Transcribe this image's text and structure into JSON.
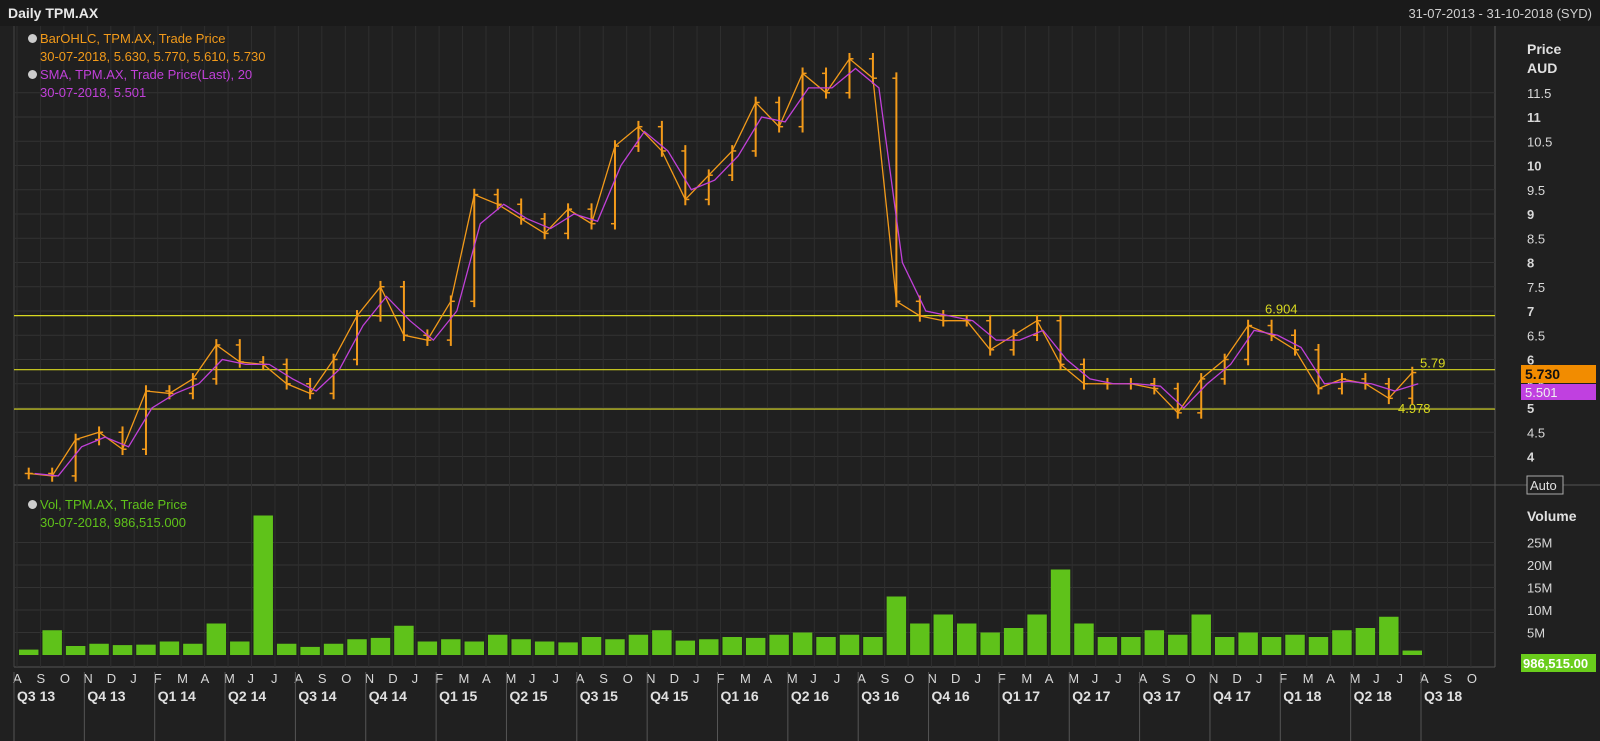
{
  "window": {
    "title": "Daily TPM.AX",
    "date_range": "31-07-2013 - 31-10-2018 (SYD)"
  },
  "price_panel": {
    "legend_bar": {
      "name": "BarOHLC, TPM.AX, Trade Price",
      "detail": "30-07-2018, 5.630, 5.770, 5.610, 5.730"
    },
    "legend_sma": {
      "name": "SMA, TPM.AX, Trade Price(Last),  20",
      "detail": "30-07-2018, 5.501"
    },
    "axis_title_1": "Price",
    "axis_title_2": "AUD",
    "auto_button": "Auto",
    "last_price_badge": "5.730",
    "sma_badge": "5.501",
    "hlines": [
      {
        "label": "6.904",
        "value": 6.904
      },
      {
        "label": "5.79",
        "value": 5.79
      },
      {
        "label": "4.978",
        "value": 4.978
      }
    ]
  },
  "volume_panel": {
    "legend": {
      "name": "Vol, TPM.AX, Trade Price",
      "detail": "30-07-2018, 986,515.000"
    },
    "axis_title": "Volume",
    "badge": "986,515.00",
    "badge_hidden": "Auto"
  },
  "colors": {
    "bars": "#f29a1a",
    "sma": "#c040d8",
    "volume": "#5fc21a",
    "hline": "#d8d820",
    "badge_price": "#f28c00",
    "badge_sma": "#c040e0",
    "badge_vol": "#6acd1c"
  },
  "chart_data": [
    {
      "type": "line",
      "title": "",
      "ylabel": "Price AUD",
      "ylim": [
        3.4,
        12.4
      ],
      "y_ticks": [
        "4",
        "4.5",
        "5",
        "5.5",
        "6",
        "6.5",
        "7",
        "7.5",
        "8",
        "8.5",
        "9",
        "9.5",
        "10",
        "10.5",
        "11",
        "11.5"
      ],
      "x_month_labels": [
        "A",
        "S",
        "O",
        "N",
        "D",
        "J",
        "F",
        "M",
        "A",
        "M",
        "J",
        "J",
        "A",
        "S",
        "O",
        "N",
        "D",
        "J",
        "F",
        "M",
        "A",
        "M",
        "J",
        "J",
        "A",
        "S",
        "O",
        "N",
        "D",
        "J",
        "F",
        "M",
        "A",
        "M",
        "J",
        "J",
        "A",
        "S",
        "O",
        "N",
        "D",
        "J",
        "F",
        "M",
        "A",
        "M",
        "J",
        "J",
        "A",
        "S",
        "O",
        "N",
        "D",
        "J",
        "F",
        "M",
        "A",
        "M",
        "J",
        "J",
        "A",
        "S",
        "O"
      ],
      "x_quarter_labels": [
        "Q3 13",
        "Q4 13",
        "Q1 14",
        "Q2 14",
        "Q3 14",
        "Q4 14",
        "Q1 15",
        "Q2 15",
        "Q3 15",
        "Q4 15",
        "Q1 16",
        "Q2 16",
        "Q3 16",
        "Q4 16",
        "Q1 17",
        "Q2 17",
        "Q3 17",
        "Q4 17",
        "Q1 18",
        "Q2 18",
        "Q3 18"
      ],
      "series": [
        {
          "name": "BarOHLC, TPM.AX, Trade Price",
          "x": [
            "2013-08",
            "2013-09",
            "2013-10",
            "2013-11",
            "2013-12",
            "2014-01",
            "2014-02",
            "2014-03",
            "2014-04",
            "2014-05",
            "2014-06",
            "2014-07",
            "2014-08",
            "2014-09",
            "2014-10",
            "2014-11",
            "2014-12",
            "2015-01",
            "2015-02",
            "2015-03",
            "2015-04",
            "2015-05",
            "2015-06",
            "2015-07",
            "2015-08",
            "2015-09",
            "2015-10",
            "2015-11",
            "2015-12",
            "2016-01",
            "2016-02",
            "2016-03",
            "2016-04",
            "2016-05",
            "2016-06",
            "2016-07",
            "2016-08",
            "2016-09",
            "2016-10",
            "2016-11",
            "2016-12",
            "2017-01",
            "2017-02",
            "2017-03",
            "2017-04",
            "2017-05",
            "2017-06",
            "2017-07",
            "2017-08",
            "2017-09",
            "2017-10",
            "2017-11",
            "2017-12",
            "2018-01",
            "2018-02",
            "2018-03",
            "2018-04",
            "2018-05",
            "2018-06",
            "2018-07"
          ],
          "values": [
            3.65,
            3.6,
            4.35,
            4.5,
            4.15,
            5.35,
            5.3,
            5.6,
            6.3,
            5.95,
            5.9,
            5.5,
            5.3,
            6.0,
            6.9,
            7.5,
            6.5,
            6.4,
            7.2,
            9.4,
            9.2,
            8.9,
            8.6,
            9.1,
            8.8,
            10.4,
            10.8,
            10.3,
            9.3,
            9.8,
            10.3,
            11.3,
            10.8,
            11.9,
            11.5,
            12.2,
            11.8,
            7.2,
            6.9,
            6.8,
            6.8,
            6.2,
            6.5,
            6.8,
            5.9,
            5.5,
            5.5,
            5.5,
            5.4,
            4.9,
            5.6,
            6.0,
            6.7,
            6.5,
            6.2,
            5.4,
            5.6,
            5.5,
            5.2,
            5.73
          ]
        },
        {
          "name": "SMA, TPM.AX, Trade Price(Last),  20",
          "x": [
            "2013-08",
            "2013-09",
            "2013-10",
            "2013-11",
            "2013-12",
            "2014-01",
            "2014-02",
            "2014-03",
            "2014-04",
            "2014-05",
            "2014-06",
            "2014-07",
            "2014-08",
            "2014-09",
            "2014-10",
            "2014-11",
            "2014-12",
            "2015-01",
            "2015-02",
            "2015-03",
            "2015-04",
            "2015-05",
            "2015-06",
            "2015-07",
            "2015-08",
            "2015-09",
            "2015-10",
            "2015-11",
            "2015-12",
            "2016-01",
            "2016-02",
            "2016-03",
            "2016-04",
            "2016-05",
            "2016-06",
            "2016-07",
            "2016-08",
            "2016-09",
            "2016-10",
            "2016-11",
            "2016-12",
            "2017-01",
            "2017-02",
            "2017-03",
            "2017-04",
            "2017-05",
            "2017-06",
            "2017-07",
            "2017-08",
            "2017-09",
            "2017-10",
            "2017-11",
            "2017-12",
            "2018-01",
            "2018-02",
            "2018-03",
            "2018-04",
            "2018-05",
            "2018-06",
            "2018-07"
          ],
          "values": [
            3.65,
            3.6,
            4.2,
            4.4,
            4.2,
            5.0,
            5.3,
            5.5,
            6.0,
            5.9,
            5.9,
            5.6,
            5.35,
            5.8,
            6.7,
            7.3,
            6.8,
            6.4,
            7.0,
            8.8,
            9.2,
            8.9,
            8.7,
            9.0,
            8.85,
            10.0,
            10.7,
            10.3,
            9.5,
            9.7,
            10.2,
            11.0,
            10.9,
            11.6,
            11.6,
            12.0,
            11.6,
            8.0,
            7.0,
            6.9,
            6.8,
            6.4,
            6.4,
            6.6,
            6.0,
            5.6,
            5.5,
            5.5,
            5.45,
            5.0,
            5.5,
            5.9,
            6.6,
            6.5,
            6.25,
            5.5,
            5.55,
            5.5,
            5.35,
            5.501
          ]
        }
      ]
    },
    {
      "type": "bar",
      "title": "",
      "ylabel": "Volume",
      "ylim": [
        0,
        30000000
      ],
      "y_ticks": [
        "5M",
        "10M",
        "15M",
        "20M",
        "25M"
      ],
      "series": [
        {
          "name": "Vol, TPM.AX, Trade Price",
          "x": [
            "2013-08",
            "2013-09",
            "2013-10",
            "2013-11",
            "2013-12",
            "2014-01",
            "2014-02",
            "2014-03",
            "2014-04",
            "2014-05",
            "2014-06",
            "2014-07",
            "2014-08",
            "2014-09",
            "2014-10",
            "2014-11",
            "2014-12",
            "2015-01",
            "2015-02",
            "2015-03",
            "2015-04",
            "2015-05",
            "2015-06",
            "2015-07",
            "2015-08",
            "2015-09",
            "2015-10",
            "2015-11",
            "2015-12",
            "2016-01",
            "2016-02",
            "2016-03",
            "2016-04",
            "2016-05",
            "2016-06",
            "2016-07",
            "2016-08",
            "2016-09",
            "2016-10",
            "2016-11",
            "2016-12",
            "2017-01",
            "2017-02",
            "2017-03",
            "2017-04",
            "2017-05",
            "2017-06",
            "2017-07",
            "2017-08",
            "2017-09",
            "2017-10",
            "2017-11",
            "2017-12",
            "2018-01",
            "2018-02",
            "2018-03",
            "2018-04",
            "2018-05",
            "2018-06",
            "2018-07"
          ],
          "values": [
            1200000,
            5500000,
            2000000,
            2500000,
            2200000,
            2300000,
            3000000,
            2500000,
            7000000,
            3000000,
            31000000,
            2500000,
            1800000,
            2500000,
            3500000,
            3800000,
            6500000,
            3000000,
            3500000,
            3000000,
            4500000,
            3500000,
            3000000,
            2800000,
            4000000,
            3500000,
            4500000,
            5500000,
            3200000,
            3500000,
            4000000,
            3800000,
            4500000,
            5000000,
            4000000,
            4500000,
            4000000,
            13000000,
            7000000,
            9000000,
            7000000,
            5000000,
            6000000,
            9000000,
            19000000,
            7000000,
            4000000,
            4000000,
            5500000,
            4500000,
            9000000,
            4000000,
            5000000,
            4000000,
            4500000,
            4000000,
            5500000,
            6000000,
            8500000,
            986515
          ]
        }
      ]
    }
  ]
}
